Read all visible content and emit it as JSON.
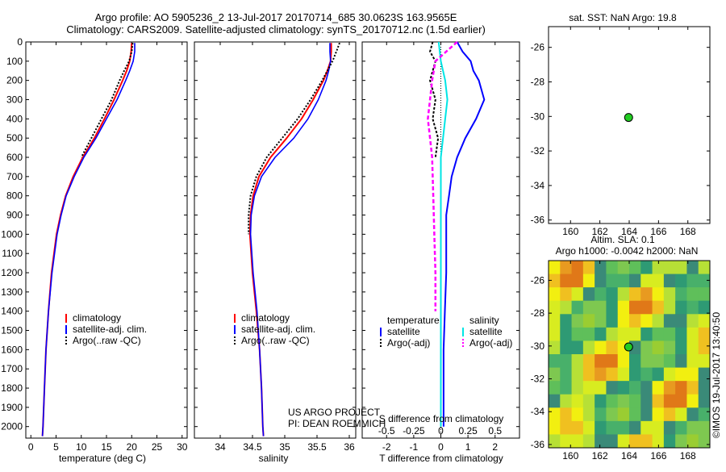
{
  "header": {
    "line1": "Argo profile: AO 5905236_2 13-Jul-2017 20170714_685 30.0623S 163.9565E",
    "line2": "Climatology: CARS2009. Satellite-adjusted climatology: synTS_20170712.nc (1.5d earlier)"
  },
  "colors": {
    "climatology": "#ff0000",
    "satellite": "#0000ff",
    "argo": "#000000",
    "sat_salinity": "#00e5e5",
    "argo_salinity": "#ff00ff",
    "dot": "#22cc22"
  },
  "chart_data": [
    {
      "type": "line",
      "name": "temperature",
      "xlabel": "temperature (deg C)",
      "ylabel": "",
      "xlim": [
        -1,
        31
      ],
      "ylim": [
        2060,
        0
      ],
      "xticks": [
        0,
        5,
        10,
        15,
        20,
        25,
        30
      ],
      "yticks": [
        0,
        100,
        200,
        300,
        400,
        500,
        600,
        700,
        800,
        900,
        1000,
        1100,
        1200,
        1300,
        1400,
        1500,
        1600,
        1700,
        1800,
        1900,
        2000
      ],
      "legend": [
        "climatology",
        "satellite-adj. clim.",
        "Argo(..raw -QC)"
      ],
      "series": [
        {
          "name": "climatology",
          "depth": [
            5,
            50,
            100,
            150,
            200,
            300,
            400,
            500,
            600,
            700,
            800,
            900,
            1000,
            1200,
            1400,
            1600,
            1800,
            2000,
            2050
          ],
          "values": [
            20.0,
            19.9,
            19.6,
            19.0,
            18.2,
            16.5,
            14.6,
            12.6,
            10.3,
            8.4,
            6.9,
            5.9,
            5.1,
            4.1,
            3.5,
            3.0,
            2.7,
            2.4,
            2.3
          ]
        },
        {
          "name": "satellite-adj. clim.",
          "depth": [
            5,
            50,
            100,
            150,
            200,
            300,
            400,
            500,
            600,
            700,
            800,
            900,
            1000,
            1200,
            1400,
            1600,
            1800,
            2000,
            2050
          ],
          "values": [
            20.6,
            20.6,
            20.3,
            19.6,
            18.8,
            17.1,
            15.0,
            12.9,
            10.5,
            8.6,
            7.0,
            6.0,
            5.2,
            4.2,
            3.5,
            3.0,
            2.7,
            2.4,
            2.3
          ]
        },
        {
          "name": "Argo(..raw -QC)",
          "depth": [
            5,
            50,
            100,
            150,
            200,
            300,
            400,
            500,
            600
          ],
          "values": [
            20.2,
            20.0,
            19.5,
            18.5,
            17.6,
            16.0,
            14.0,
            12.0,
            10.0
          ]
        }
      ]
    },
    {
      "type": "line",
      "name": "salinity",
      "xlabel": "salinity",
      "xlim": [
        33.6,
        36.1
      ],
      "ylim": [
        2060,
        0
      ],
      "xticks": [
        34,
        34.5,
        35,
        35.5,
        36
      ],
      "legend": [
        "climatology",
        "satellite-adj. clim.",
        "Argo(..raw -QC)"
      ],
      "annotation": [
        "US ARGO PROJECT",
        "PI: DEAN ROEMMICH"
      ],
      "series": [
        {
          "name": "climatology",
          "depth": [
            5,
            50,
            100,
            150,
            200,
            300,
            400,
            500,
            600,
            700,
            800,
            900,
            1000,
            1200,
            1400,
            1600,
            1800,
            2000,
            2050
          ],
          "values": [
            35.72,
            35.72,
            35.71,
            35.66,
            35.6,
            35.44,
            35.26,
            35.03,
            34.78,
            34.6,
            34.51,
            34.47,
            34.46,
            34.5,
            34.56,
            34.61,
            34.64,
            34.66,
            34.67
          ]
        },
        {
          "name": "satellite-adj. clim.",
          "depth": [
            5,
            50,
            100,
            150,
            200,
            300,
            400,
            500,
            600,
            700,
            800,
            900,
            1000,
            1200,
            1400,
            1600,
            1800,
            2000,
            2050
          ],
          "values": [
            35.7,
            35.7,
            35.71,
            35.68,
            35.64,
            35.52,
            35.36,
            35.14,
            34.85,
            34.64,
            34.53,
            34.48,
            34.47,
            34.51,
            34.57,
            34.61,
            34.64,
            34.66,
            34.67
          ]
        },
        {
          "name": "Argo(..raw -QC)",
          "depth": [
            5,
            50,
            100,
            150,
            200,
            300,
            400,
            500,
            600,
            700,
            800,
            900,
            1000
          ],
          "values": [
            35.85,
            35.8,
            35.74,
            35.66,
            35.58,
            35.4,
            35.2,
            34.96,
            34.72,
            34.56,
            34.47,
            34.44,
            34.44
          ]
        }
      ]
    },
    {
      "type": "line",
      "name": "differences",
      "xlabel": "T difference from climatology",
      "xlabel2": "S difference from climatology",
      "xticks": [
        -2,
        -1,
        0,
        1,
        2
      ],
      "xticks2": [
        "-0.5",
        "-0.25",
        "0",
        "0.25",
        "0.5"
      ],
      "xlim": [
        -2.9,
        2.9
      ],
      "ylim": [
        2060,
        0
      ],
      "legend_headers": [
        "temperature",
        "salinity"
      ],
      "legend": [
        "satellite",
        "Argo(-adj)",
        "satellite",
        "Argo(-adj)"
      ],
      "series": [
        {
          "name": "T satellite",
          "depth": [
            0,
            50,
            100,
            150,
            200,
            300,
            400,
            500,
            600,
            700,
            800,
            900,
            1000,
            1200,
            1400,
            1600,
            1800,
            2000
          ],
          "values": [
            0.6,
            0.8,
            1.1,
            1.2,
            1.4,
            1.6,
            1.3,
            0.9,
            0.6,
            0.4,
            0.3,
            0.2,
            0.2,
            0.2,
            0.15,
            0.1,
            0.1,
            0.1
          ]
        },
        {
          "name": "T Argo(-adj)",
          "depth": [
            0,
            50,
            100,
            150,
            200,
            300,
            400,
            500,
            600
          ],
          "values": [
            -0.3,
            -0.4,
            -0.2,
            -0.3,
            -0.4,
            -0.2,
            -0.3,
            -0.1,
            -0.2
          ]
        },
        {
          "name": "S satellite",
          "depth": [
            0,
            100,
            200,
            300,
            400,
            500,
            600,
            800,
            1000,
            1400,
            1800,
            2000
          ],
          "values": [
            -0.02,
            0.0,
            0.04,
            0.06,
            0.04,
            0.02,
            0.0,
            0.0,
            0.0,
            0.0,
            0.0,
            0.0
          ]
        },
        {
          "name": "S Argo(-adj)",
          "depth": [
            0,
            50,
            100,
            200,
            300,
            400,
            500,
            600,
            800,
            1000,
            1200,
            1400
          ],
          "values": [
            0.15,
            0.05,
            -0.05,
            -0.08,
            -0.1,
            -0.12,
            -0.1,
            -0.08,
            -0.07,
            -0.06,
            -0.05,
            -0.05
          ]
        }
      ]
    },
    {
      "type": "scatter",
      "name": "sst-map",
      "title": "sat. SST: NaN  Argo: 19.8",
      "xlim": [
        158.5,
        169.5
      ],
      "ylim": [
        -36.2,
        -24.8
      ],
      "xticks": [
        160,
        162,
        164,
        166,
        168
      ],
      "yticks": [
        -26,
        -28,
        -30,
        -32,
        -34,
        -36
      ],
      "points": [
        {
          "x": 163.96,
          "y": -30.06
        }
      ]
    },
    {
      "type": "heatmap",
      "name": "sla-map",
      "title_line1": "Altim. SLA: 0.1",
      "title_line2": "Argo h1000: -0.0042 h2000: NaN",
      "xlim": [
        158.5,
        169.5
      ],
      "ylim": [
        -36.2,
        -24.8
      ],
      "xticks": [
        160,
        162,
        164,
        166,
        168
      ],
      "yticks": [
        -26,
        -28,
        -30,
        -32,
        -34,
        -36
      ],
      "points": [
        {
          "x": 163.96,
          "y": -30.06
        }
      ]
    }
  ],
  "footer": {
    "credit": "©IMOS 19-Jul-2017 13:40:50"
  }
}
